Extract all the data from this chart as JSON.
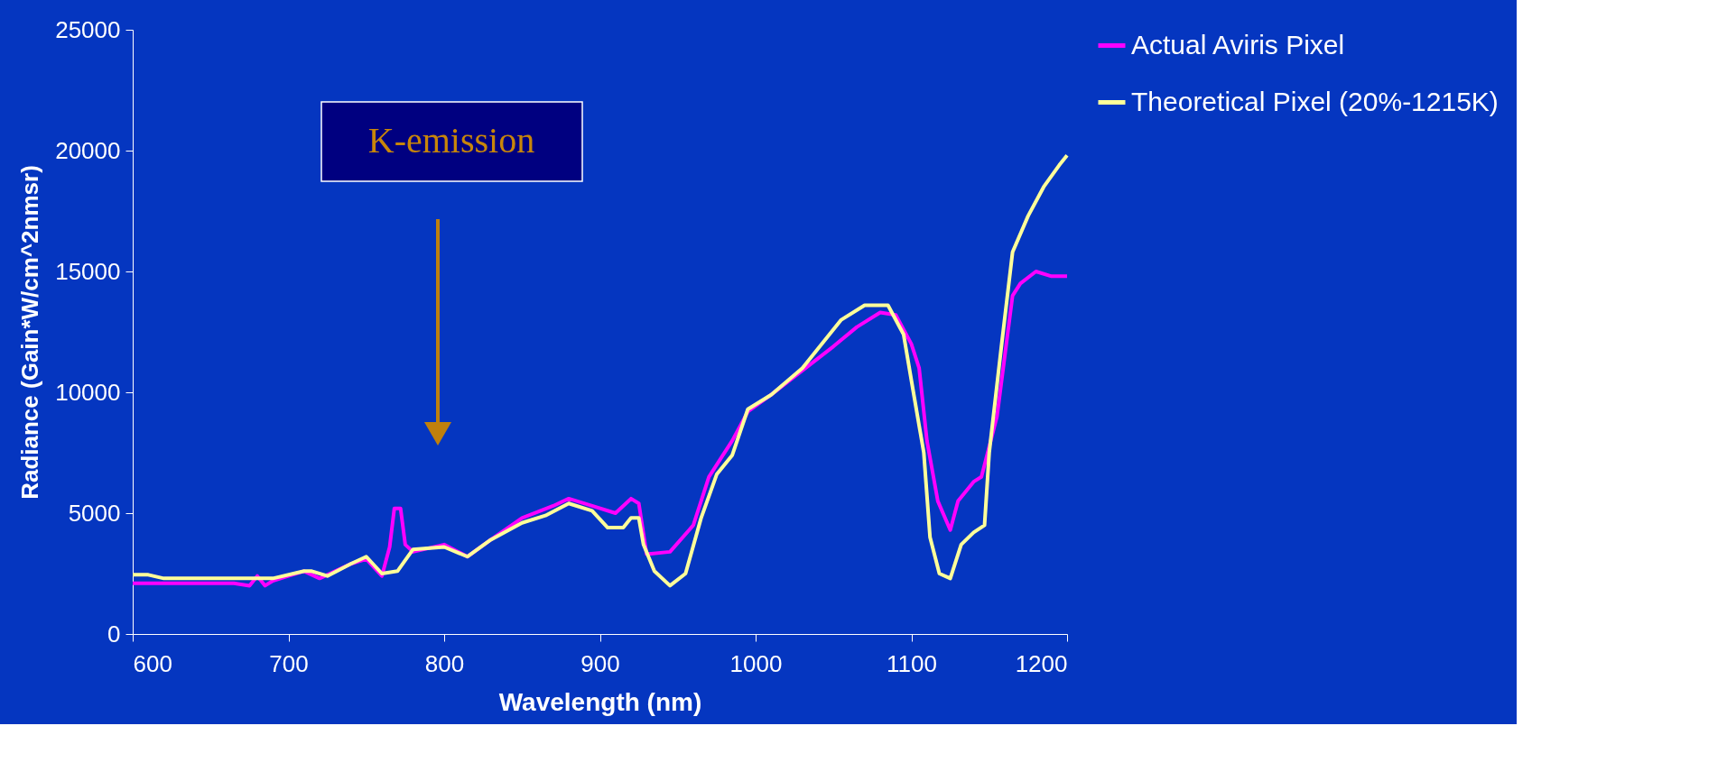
{
  "chart_data": {
    "type": "line",
    "xlabel": "Wavelength (nm)",
    "ylabel": "Radiance (Gain*W/cm^2nmsr)",
    "xlim": [
      600,
      1200
    ],
    "xticks": [
      600,
      700,
      800,
      900,
      1000,
      1100,
      1200
    ],
    "ylim": [
      0,
      25000
    ],
    "yticks": [
      0,
      5000,
      10000,
      15000,
      20000,
      25000
    ],
    "grid": false,
    "legend": "right",
    "marker": "none",
    "line_style": "solid",
    "annotations": [
      "K-emission"
    ],
    "series": [
      {
        "name": "Actual Aviris Pixel",
        "color": "#ff00ff",
        "x": [
          600,
          665,
          675,
          680,
          685,
          690,
          700,
          710,
          720,
          730,
          740,
          750,
          760,
          765,
          768,
          772,
          775,
          780,
          800,
          815,
          830,
          850,
          870,
          880,
          895,
          910,
          920,
          925,
          930,
          945,
          960,
          970,
          985,
          995,
          1010,
          1030,
          1050,
          1065,
          1080,
          1090,
          1100,
          1105,
          1110,
          1117,
          1125,
          1130,
          1140,
          1145,
          1155,
          1165,
          1170,
          1180,
          1190,
          1200
        ],
        "values": [
          2100,
          2100,
          2000,
          2400,
          2000,
          2200,
          2400,
          2600,
          2300,
          2600,
          2900,
          3100,
          2400,
          3600,
          5200,
          5200,
          3700,
          3400,
          3700,
          3200,
          3900,
          4800,
          5300,
          5600,
          5300,
          5000,
          5600,
          5400,
          3300,
          3400,
          4500,
          6500,
          8000,
          9200,
          9900,
          10900,
          11900,
          12700,
          13300,
          13200,
          12000,
          11000,
          8000,
          5500,
          4300,
          5500,
          6300,
          6500,
          9000,
          14000,
          14500,
          15000,
          14800,
          14800
        ]
      },
      {
        "name": "Theoretical Pixel (20%-1215K)",
        "color": "#ffff99",
        "x": [
          600,
          610,
          620,
          690,
          710,
          715,
          725,
          740,
          750,
          760,
          770,
          780,
          800,
          815,
          830,
          850,
          865,
          880,
          895,
          905,
          915,
          920,
          925,
          928,
          935,
          945,
          955,
          965,
          975,
          985,
          995,
          1010,
          1030,
          1045,
          1055,
          1070,
          1085,
          1095,
          1100,
          1108,
          1112,
          1118,
          1125,
          1132,
          1140,
          1147,
          1150,
          1158,
          1165,
          1175,
          1185,
          1195,
          1200
        ],
        "values": [
          2450,
          2450,
          2300,
          2300,
          2600,
          2600,
          2400,
          2900,
          3200,
          2500,
          2600,
          3500,
          3600,
          3200,
          3900,
          4600,
          4900,
          5400,
          5100,
          4400,
          4400,
          4800,
          4800,
          3700,
          2600,
          2000,
          2500,
          4800,
          6600,
          7400,
          9300,
          9900,
          11000,
          12200,
          13000,
          13600,
          13600,
          12400,
          10500,
          7500,
          4000,
          2500,
          2300,
          3700,
          4200,
          4500,
          7500,
          12000,
          15800,
          17300,
          18500,
          19400,
          19800
        ]
      }
    ]
  }
}
